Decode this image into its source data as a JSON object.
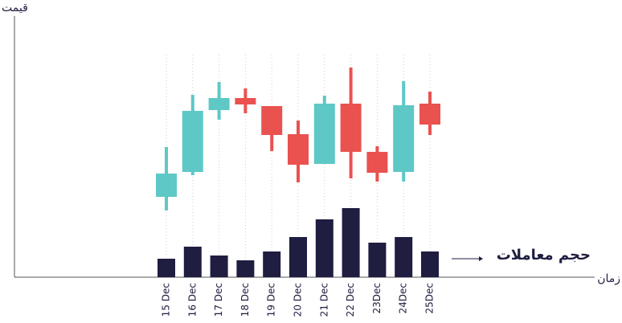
{
  "chart_data": {
    "type": "candlestick",
    "y_label": "قیمت",
    "x_label": "زمان",
    "volume_label": "حجم معاملات",
    "categories": [
      "15 Dec",
      "16 Dec",
      "17 Dec",
      "18 Dec",
      "19 Dec",
      "20 Dec",
      "21 Dec",
      "22 Dec",
      "23Dec",
      "24Dec",
      "25Dec"
    ],
    "open": [
      100,
      131,
      208,
      223,
      213,
      178,
      141,
      216,
      156,
      131,
      216
    ],
    "close": [
      129,
      207,
      223,
      215,
      177,
      140,
      216,
      156,
      130,
      214,
      190
    ],
    "high": [
      162,
      227,
      243,
      235,
      213,
      195,
      226,
      261,
      163,
      244,
      231
    ],
    "low": [
      83,
      127,
      196,
      204,
      157,
      118,
      141,
      123,
      119,
      119,
      177
    ],
    "volume": [
      23,
      38,
      27,
      21,
      32,
      50,
      72,
      86,
      43,
      50,
      32
    ],
    "up_color": "#5ec8c6",
    "down_color": "#e9524f",
    "volume_color": "#1f1d40",
    "ylim": [
      0,
      325
    ]
  }
}
